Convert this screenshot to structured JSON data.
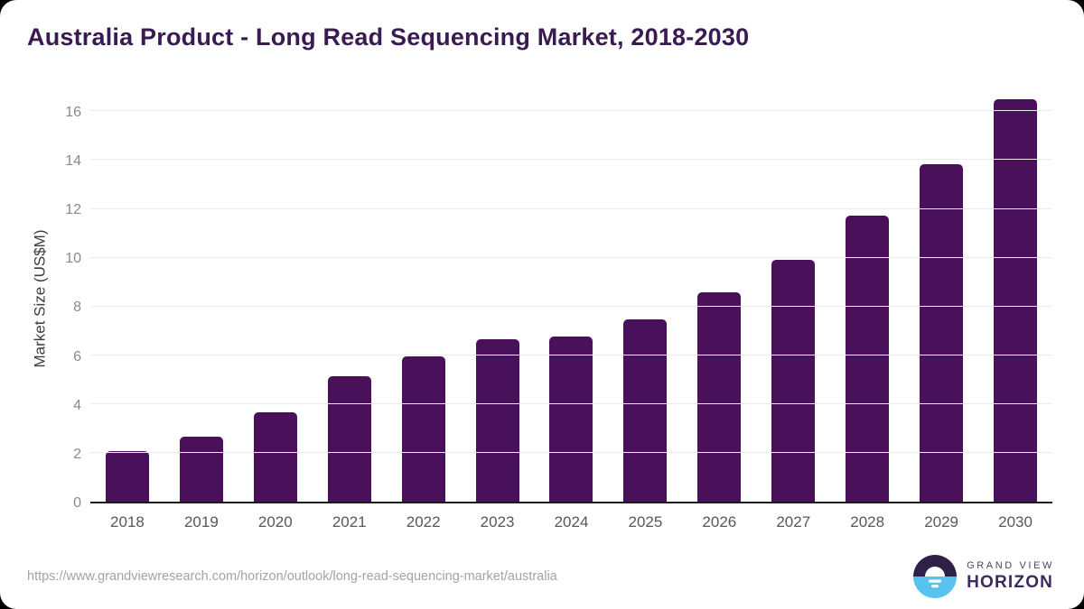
{
  "chart_data": {
    "type": "bar",
    "title": "Australia Product - Long Read Sequencing Market, 2018-2030",
    "categories": [
      "2018",
      "2019",
      "2020",
      "2021",
      "2022",
      "2023",
      "2024",
      "2025",
      "2026",
      "2027",
      "2028",
      "2029",
      "2030"
    ],
    "values": [
      2.05,
      2.65,
      3.65,
      5.15,
      5.95,
      6.65,
      6.75,
      7.45,
      8.55,
      9.9,
      11.7,
      13.8,
      16.45
    ],
    "xlabel": "",
    "ylabel": "Market Size (US$M)",
    "ylim": [
      0,
      16.8
    ],
    "yticks": [
      0,
      2,
      4,
      6,
      8,
      10,
      12,
      14,
      16
    ],
    "grid": true,
    "legend": false,
    "bar_color": "#4a1059"
  },
  "footer": {
    "source_url": "https://www.grandviewresearch.com/horizon/outlook/long-read-sequencing-market/australia",
    "logo": {
      "top_line": "GRAND VIEW",
      "bottom_line": "HORIZON"
    }
  },
  "colors": {
    "bar": "#4a1059",
    "title": "#3a1a53",
    "axis_line": "#1d1d1d",
    "gridline": "#ececec",
    "tick_label": "#8a8a8a",
    "x_label": "#58585c",
    "y_axis_title": "#3c3c3c",
    "source_url": "#a3a3a3",
    "logo_circle_top": "#2e2046",
    "logo_circle_bottom": "#58c3ef",
    "logo_text_top": "#4c465a",
    "logo_text_bottom": "#3a2b5c",
    "card_background": "#ffffff",
    "page_background": "#000000"
  }
}
